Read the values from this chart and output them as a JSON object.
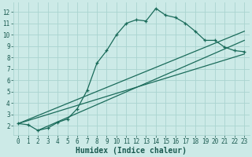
{
  "xlabel": "Humidex (Indice chaleur)",
  "bg_color": "#cceae7",
  "grid_color": "#aad4d0",
  "line_color": "#1a6b5a",
  "text_color": "#1a5a50",
  "xlim": [
    -0.5,
    23.5
  ],
  "ylim": [
    1.2,
    12.8
  ],
  "yticks": [
    2,
    3,
    4,
    5,
    6,
    7,
    8,
    9,
    10,
    11,
    12
  ],
  "xticks": [
    0,
    1,
    2,
    3,
    4,
    5,
    6,
    7,
    8,
    9,
    10,
    11,
    12,
    13,
    14,
    15,
    16,
    17,
    18,
    19,
    20,
    21,
    22,
    23
  ],
  "curve1_x": [
    0,
    1,
    2,
    3,
    4,
    5,
    6,
    7,
    8,
    9,
    10,
    11,
    12,
    13,
    14,
    15,
    16,
    17,
    18,
    19,
    20,
    21,
    22,
    23
  ],
  "curve1_y": [
    2.2,
    2.1,
    1.6,
    1.8,
    2.3,
    2.6,
    3.5,
    5.1,
    7.5,
    8.6,
    10.0,
    11.0,
    11.3,
    11.2,
    12.3,
    11.7,
    11.5,
    11.0,
    10.3,
    9.5,
    9.5,
    8.9,
    8.6,
    8.5
  ],
  "line1_x": [
    0,
    23
  ],
  "line1_y": [
    2.2,
    10.3
  ],
  "line2_x": [
    2,
    23
  ],
  "line2_y": [
    1.6,
    9.5
  ],
  "line3_x": [
    0,
    23
  ],
  "line3_y": [
    2.2,
    8.3
  ],
  "tick_fontsize": 5.5,
  "xlabel_fontsize": 7
}
